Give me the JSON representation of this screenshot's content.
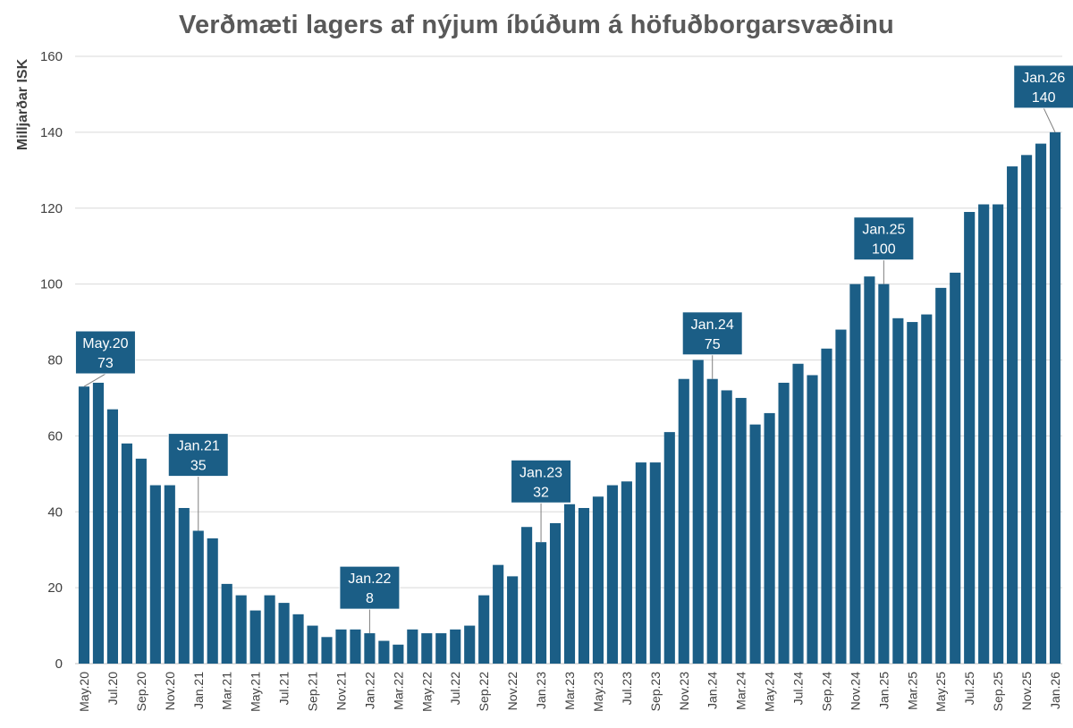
{
  "chart_data": {
    "type": "bar",
    "title": "Verðmæti lagers af nýjum íbúðum á höfuðborgarsvæðinu",
    "ylabel": "Milljarðar ISK",
    "xlabel": "",
    "ylim": [
      0,
      160
    ],
    "yticks": [
      0,
      20,
      40,
      60,
      80,
      100,
      120,
      140,
      160
    ],
    "grid": true,
    "bar_color": "#1b5e86",
    "grid_color": "#d9d9d9",
    "categories": [
      "May.20",
      "Jun.20",
      "Jul.20",
      "Aug.20",
      "Sep.20",
      "Oct.20",
      "Nov.20",
      "Dec.20",
      "Jan.21",
      "Feb.21",
      "Mar.21",
      "Apr.21",
      "May.21",
      "Jun.21",
      "Jul.21",
      "Aug.21",
      "Sep.21",
      "Oct.21",
      "Nov.21",
      "Dec.21",
      "Jan.22",
      "Feb.22",
      "Mar.22",
      "Apr.22",
      "May.22",
      "Jun.22",
      "Jul.22",
      "Aug.22",
      "Sep.22",
      "Oct.22",
      "Nov.22",
      "Dec.22",
      "Jan.23",
      "Feb.23",
      "Mar.23",
      "Apr.23",
      "May.23",
      "Jun.23",
      "Jul.23",
      "Aug.23",
      "Sep.23",
      "Oct.23",
      "Nov.23",
      "Dec.23",
      "Jan.24",
      "Feb.24",
      "Mar.24",
      "Apr.24",
      "May.24",
      "Jun.24",
      "Jul.24",
      "Aug.24",
      "Sep.24",
      "Oct.24",
      "Nov.24",
      "Dec.24",
      "Jan.25",
      "Feb.25",
      "Mar.25",
      "Apr.25",
      "May.25",
      "Jun.25",
      "Jul.25",
      "Aug.25",
      "Sep.25",
      "Oct.25",
      "Nov.25",
      "Dec.25",
      "Jan.26"
    ],
    "values": [
      73,
      74,
      67,
      58,
      54,
      47,
      47,
      41,
      35,
      33,
      21,
      18,
      14,
      18,
      16,
      13,
      10,
      7,
      9,
      9,
      8,
      6,
      5,
      9,
      8,
      8,
      9,
      10,
      18,
      26,
      23,
      36,
      32,
      37,
      42,
      41,
      44,
      47,
      48,
      53,
      53,
      61,
      75,
      80,
      75,
      72,
      70,
      63,
      66,
      74,
      79,
      76,
      83,
      88,
      100,
      102,
      100,
      91,
      90,
      92,
      99,
      103,
      119,
      121,
      121,
      131,
      134,
      137,
      140
    ],
    "x_tick_labels": [
      "May.20",
      "Jul.20",
      "Sep.20",
      "Nov.20",
      "Jan.21",
      "Mar.21",
      "May.21",
      "Jul.21",
      "Sep.21",
      "Nov.21",
      "Jan.22",
      "Mar.22",
      "May.22",
      "Jul.22",
      "Sep.22",
      "Nov.22",
      "Jan.23",
      "Mar.23",
      "May.23",
      "Jul.23",
      "Sep.23",
      "Nov.23",
      "Jan.24",
      "Mar.24",
      "May.24",
      "Jul.24",
      "Sep.24",
      "Nov.24",
      "Jan.25",
      "Mar.25",
      "May.25",
      "Jul.25",
      "Sep.25",
      "Nov.25",
      "Jan.26"
    ],
    "annotations": [
      {
        "category": "May.20",
        "label": "May.20",
        "value": "73",
        "box_value": 82,
        "box_x_index": 1.5
      },
      {
        "category": "Jan.21",
        "label": "Jan.21",
        "value": "35",
        "box_value": 55,
        "box_x_index": 8
      },
      {
        "category": "Jan.22",
        "label": "Jan.22",
        "value": "8",
        "box_value": 20,
        "box_x_index": 20
      },
      {
        "category": "Jan.23",
        "label": "Jan.23",
        "value": "32",
        "box_value": 48,
        "box_x_index": 32
      },
      {
        "category": "Jan.24",
        "label": "Jan.24",
        "value": "75",
        "box_value": 87,
        "box_x_index": 44
      },
      {
        "category": "Jan.25",
        "label": "Jan.25",
        "value": "100",
        "box_value": 112,
        "box_x_index": 56
      },
      {
        "category": "Jan.26",
        "label": "Jan.26",
        "value": "140",
        "box_value": 152,
        "box_x_index": 67.2
      }
    ]
  }
}
